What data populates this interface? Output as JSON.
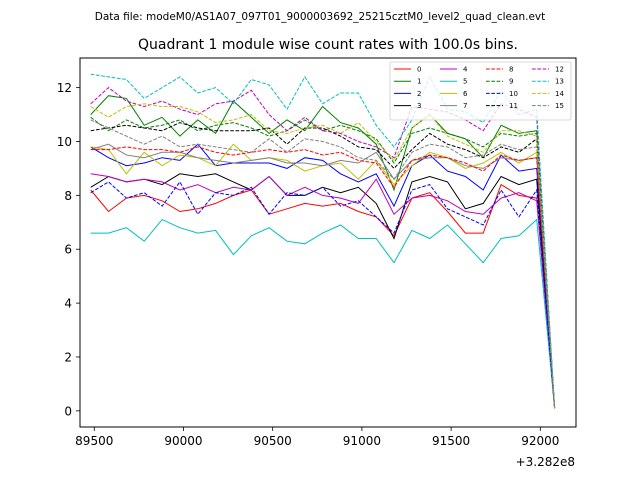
{
  "header": {
    "suptitle": "Data file: modeM0/AS1A07_097T01_9000003692_25215cztM0_level2_quad_clean.evt"
  },
  "chart_data": {
    "type": "line",
    "title": "Quadrant 1 module wise count rates with 100.0s bins.",
    "xlabel": "",
    "ylabel": "",
    "x_offset_label": "+3.282e8",
    "xlim": [
      89420,
      92200
    ],
    "ylim": [
      -0.6,
      13.1
    ],
    "xticks": [
      89500,
      90000,
      90500,
      91000,
      91500,
      92000
    ],
    "xtick_labels": [
      "89500",
      "90000",
      "90500",
      "91000",
      "91500",
      "92000"
    ],
    "yticks": [
      0,
      2,
      4,
      6,
      8,
      10,
      12
    ],
    "ytick_labels": [
      "0",
      "2",
      "4",
      "6",
      "8",
      "10",
      "12"
    ],
    "grid": false,
    "legend_position": "top-right",
    "legend_columns": 4,
    "x": [
      89480,
      89580,
      89680,
      89780,
      89880,
      89980,
      90080,
      90180,
      90280,
      90380,
      90480,
      90580,
      90680,
      90780,
      90880,
      90980,
      91080,
      91180,
      91280,
      91380,
      91480,
      91580,
      91680,
      91780,
      91880,
      91980,
      92080
    ],
    "series": [
      {
        "name": "0",
        "color": "#ff0000",
        "dash": "solid",
        "values": [
          8.2,
          7.4,
          7.9,
          8.0,
          7.8,
          7.4,
          7.5,
          7.7,
          8.0,
          8.2,
          7.3,
          7.5,
          7.7,
          7.6,
          7.7,
          7.4,
          7.2,
          6.5,
          7.9,
          8.1,
          7.4,
          6.6,
          6.6,
          8.4,
          8.0,
          7.9,
          0.1
        ]
      },
      {
        "name": "1",
        "color": "#008000",
        "dash": "solid",
        "values": [
          11.0,
          11.7,
          11.6,
          10.6,
          10.9,
          10.2,
          10.8,
          10.3,
          11.5,
          10.9,
          10.3,
          10.8,
          10.4,
          11.3,
          10.7,
          10.5,
          9.9,
          8.2,
          10.5,
          11.0,
          10.3,
          10.1,
          9.4,
          10.6,
          10.3,
          10.4,
          0.1
        ]
      },
      {
        "name": "2",
        "color": "#0000ff",
        "dash": "solid",
        "values": [
          9.8,
          9.4,
          9.1,
          9.2,
          9.4,
          9.3,
          9.9,
          9.1,
          9.2,
          9.2,
          9.2,
          9.0,
          9.4,
          9.3,
          8.8,
          8.5,
          8.8,
          7.6,
          9.1,
          9.5,
          8.9,
          8.7,
          8.2,
          9.5,
          8.9,
          9.0,
          0.1
        ]
      },
      {
        "name": "3",
        "color": "#000000",
        "dash": "solid",
        "values": [
          8.3,
          8.7,
          8.5,
          8.6,
          8.4,
          8.8,
          8.7,
          8.8,
          8.5,
          8.2,
          8.7,
          8.0,
          8.0,
          8.3,
          8.1,
          8.3,
          7.7,
          6.4,
          8.5,
          8.7,
          8.5,
          7.5,
          7.7,
          8.7,
          8.4,
          8.6,
          0.1
        ]
      },
      {
        "name": "4",
        "color": "#bf00bf",
        "dash": "solid",
        "values": [
          8.8,
          8.7,
          8.5,
          8.6,
          8.5,
          8.2,
          8.4,
          8.1,
          8.3,
          8.2,
          8.7,
          8.0,
          8.3,
          8.0,
          7.9,
          7.7,
          8.6,
          7.3,
          7.9,
          8.0,
          7.8,
          7.4,
          7.3,
          7.9,
          8.1,
          7.8,
          0.1
        ]
      },
      {
        "name": "5",
        "color": "#00bfbf",
        "dash": "solid",
        "values": [
          6.6,
          6.6,
          6.8,
          6.3,
          7.1,
          6.8,
          6.6,
          6.7,
          5.8,
          6.5,
          6.8,
          6.3,
          6.2,
          6.6,
          6.9,
          6.4,
          6.4,
          5.5,
          6.7,
          6.4,
          6.9,
          6.2,
          5.5,
          6.4,
          6.5,
          7.1,
          0.1
        ]
      },
      {
        "name": "6",
        "color": "#bfbf00",
        "dash": "solid",
        "values": [
          9.8,
          9.7,
          8.8,
          9.6,
          9.1,
          9.5,
          9.4,
          9.1,
          9.9,
          9.3,
          9.4,
          9.3,
          8.9,
          9.1,
          9.2,
          8.6,
          9.3,
          8.4,
          9.1,
          9.6,
          9.4,
          9.0,
          9.2,
          9.6,
          9.2,
          9.6,
          0.1
        ]
      },
      {
        "name": "7",
        "color": "#808080",
        "dash": "solid",
        "values": [
          9.7,
          9.9,
          9.5,
          9.4,
          9.6,
          9.6,
          9.4,
          9.3,
          9.2,
          9.3,
          9.4,
          9.2,
          9.2,
          9.1,
          9.3,
          9.2,
          9.6,
          8.6,
          9.3,
          9.4,
          9.4,
          9.1,
          9.0,
          9.4,
          9.3,
          9.4,
          0.1
        ]
      },
      {
        "name": "8",
        "color": "#ff0000",
        "dash": "dashed",
        "values": [
          9.7,
          9.7,
          9.8,
          9.7,
          9.7,
          9.6,
          9.8,
          9.6,
          9.5,
          9.6,
          9.7,
          9.6,
          9.7,
          9.5,
          9.6,
          9.3,
          9.2,
          8.3,
          9.3,
          9.5,
          9.4,
          9.2,
          8.9,
          9.5,
          9.3,
          9.4,
          0.1
        ]
      },
      {
        "name": "9",
        "color": "#008000",
        "dash": "dashed",
        "values": [
          10.9,
          10.4,
          10.8,
          10.5,
          10.6,
          10.8,
          10.4,
          10.6,
          10.7,
          10.5,
          10.2,
          10.4,
          10.8,
          10.4,
          10.6,
          10.4,
          10.1,
          9.2,
          10.3,
          10.5,
          10.3,
          10.1,
          9.8,
          10.3,
          10.2,
          10.3,
          0.1
        ]
      },
      {
        "name": "10",
        "color": "#0000ff",
        "dash": "dashed",
        "values": [
          8.1,
          8.5,
          7.9,
          8.1,
          7.6,
          8.5,
          7.3,
          8.1,
          8.0,
          8.3,
          7.3,
          8.1,
          8.0,
          8.3,
          7.6,
          7.8,
          7.2,
          6.6,
          8.2,
          8.4,
          7.5,
          7.2,
          6.9,
          8.2,
          7.2,
          8.2,
          0.1
        ]
      },
      {
        "name": "11",
        "color": "#000000",
        "dash": "dashed",
        "values": [
          10.4,
          10.5,
          10.6,
          10.5,
          10.4,
          10.7,
          10.5,
          10.4,
          10.4,
          10.4,
          10.5,
          9.9,
          10.5,
          10.5,
          10.2,
          9.8,
          9.7,
          9.0,
          9.7,
          10.3,
          9.9,
          9.7,
          9.4,
          9.8,
          9.6,
          10.1,
          0.1
        ]
      },
      {
        "name": "12",
        "color": "#bf00bf",
        "dash": "dashed",
        "values": [
          11.4,
          12.0,
          11.5,
          11.3,
          11.5,
          11.2,
          11.0,
          11.4,
          11.5,
          11.9,
          11.0,
          10.4,
          10.9,
          10.4,
          10.3,
          10.0,
          9.8,
          9.4,
          11.3,
          11.2,
          11.1,
          10.8,
          10.4,
          11.4,
          11.2,
          10.9,
          0.1
        ]
      },
      {
        "name": "13",
        "color": "#00bfbf",
        "dash": "dashed",
        "values": [
          12.5,
          12.4,
          12.3,
          11.6,
          12.0,
          12.4,
          11.8,
          12.0,
          11.4,
          12.3,
          12.1,
          11.2,
          12.4,
          11.4,
          11.8,
          11.8,
          10.6,
          9.8,
          10.8,
          12.4,
          11.2,
          11.1,
          10.7,
          11.9,
          11.0,
          11.2,
          0.1
        ]
      },
      {
        "name": "14",
        "color": "#bfbf00",
        "dash": "dashed",
        "values": [
          11.3,
          10.9,
          11.3,
          11.4,
          11.3,
          11.3,
          11.1,
          10.7,
          10.8,
          11.0,
          10.4,
          10.3,
          10.5,
          10.6,
          10.3,
          10.7,
          10.0,
          9.3,
          10.5,
          11.0,
          10.2,
          9.9,
          9.6,
          10.4,
          10.4,
          10.2,
          0.1
        ]
      },
      {
        "name": "15",
        "color": "#808080",
        "dash": "dashed",
        "values": [
          10.8,
          10.5,
          10.2,
          9.9,
          10.2,
          9.8,
          9.9,
          9.8,
          9.7,
          9.6,
          10.1,
          9.6,
          10.1,
          10.0,
          9.8,
          9.4,
          9.3,
          8.6,
          9.6,
          9.9,
          9.8,
          9.4,
          9.5,
          9.9,
          9.7,
          9.8,
          0.1
        ]
      }
    ]
  }
}
